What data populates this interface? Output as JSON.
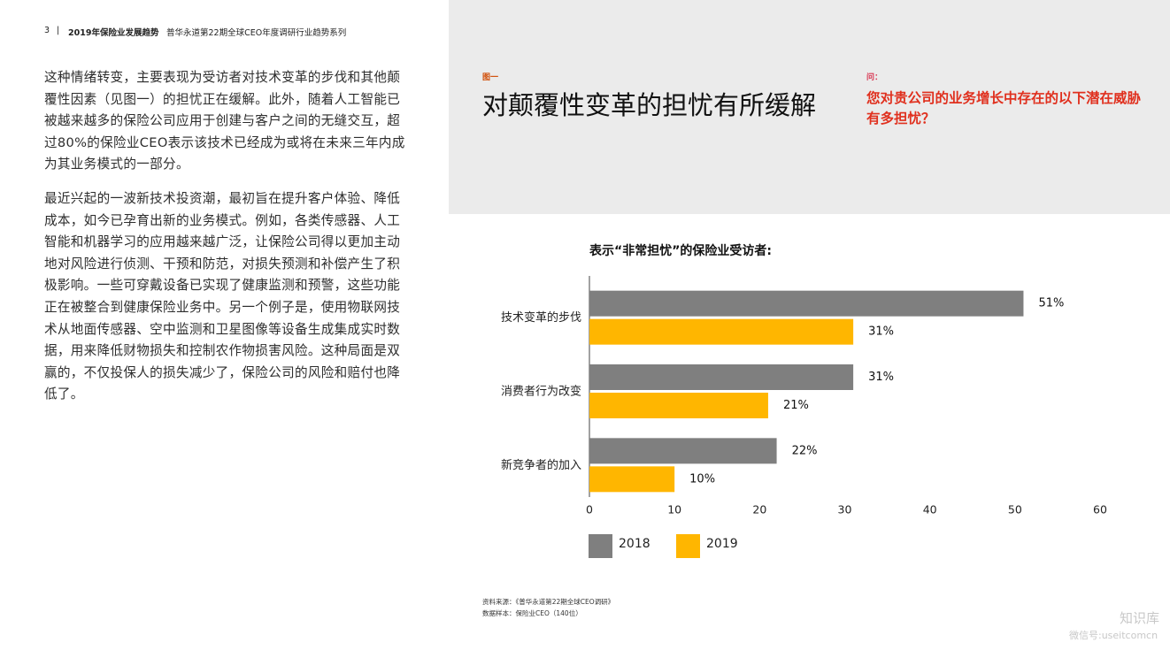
{
  "header": {
    "page": "3",
    "separator": "|",
    "report": "2019年保险业发展趋势",
    "series": "普华永道第22期全球CEO年度调研行业趋势系列"
  },
  "body": {
    "paragraphs": [
      "这种情绪转变，主要表现为受访者对技术变革的步伐和其他颠覆性因素（见图一）的担忧正在缓解。此外，随着人工智能已被越来越多的保险公司应用于创建与客户之间的无缝交互，超过80%的保险业CEO表示该技术已经成为或将在未来三年内成为其业务模式的一部分。",
      "最近兴起的一波新技术投资潮，最初旨在提升客户体验、降低成本，如今已孕育出新的业务模式。例如，各类传感器、人工智能和机器学习的应用越来越广泛，让保险公司得以更加主动地对风险进行侦测、干预和防范，对损失预测和补偿产生了积极影响。一些可穿戴设备已实现了健康监测和预警，这些功能正在被整合到健康保险业务中。另一个例子是，使用物联网技术从地面传感器、空中监测和卫星图像等设备生成集成实时数据，用来降低财物损失和控制农作物损害风险。这种局面是双赢的，不仅投保人的损失减少了，保险公司的风险和赔付也降低了。"
    ]
  },
  "figure": {
    "label": "图一",
    "title": "对颠覆性变革的担忧有所缓解",
    "question_label": "问：",
    "question": "您对贵公司的业务增长中存在的以下潜在威胁有多担忧？"
  },
  "chart_data": {
    "type": "bar",
    "orientation": "horizontal",
    "title": "表示“非常担忧”的保险业受访者:",
    "categories": [
      "技术变革的步伐",
      "消费者行为改变",
      "新竞争者的加入"
    ],
    "series": [
      {
        "name": "2018",
        "color": "#7f7f7f",
        "values": [
          51,
          31,
          22
        ],
        "value_labels": [
          "51%",
          "31%",
          "22%"
        ]
      },
      {
        "name": "2019",
        "color": "#ffb600",
        "values": [
          31,
          21,
          10
        ],
        "value_labels": [
          "31%",
          "21%",
          "10%"
        ]
      }
    ],
    "xlim": [
      0,
      60
    ],
    "xticks": [
      0,
      10,
      20,
      30,
      40,
      50,
      60
    ],
    "grid": false,
    "legend": "bottom-left"
  },
  "footnotes": [
    "资料来源：《普华永道第22期全球CEO调研》",
    "数据样本：保险业CEO（140位）"
  ],
  "watermark": {
    "name": "知识库",
    "account": "微信号:useitcomcn"
  }
}
